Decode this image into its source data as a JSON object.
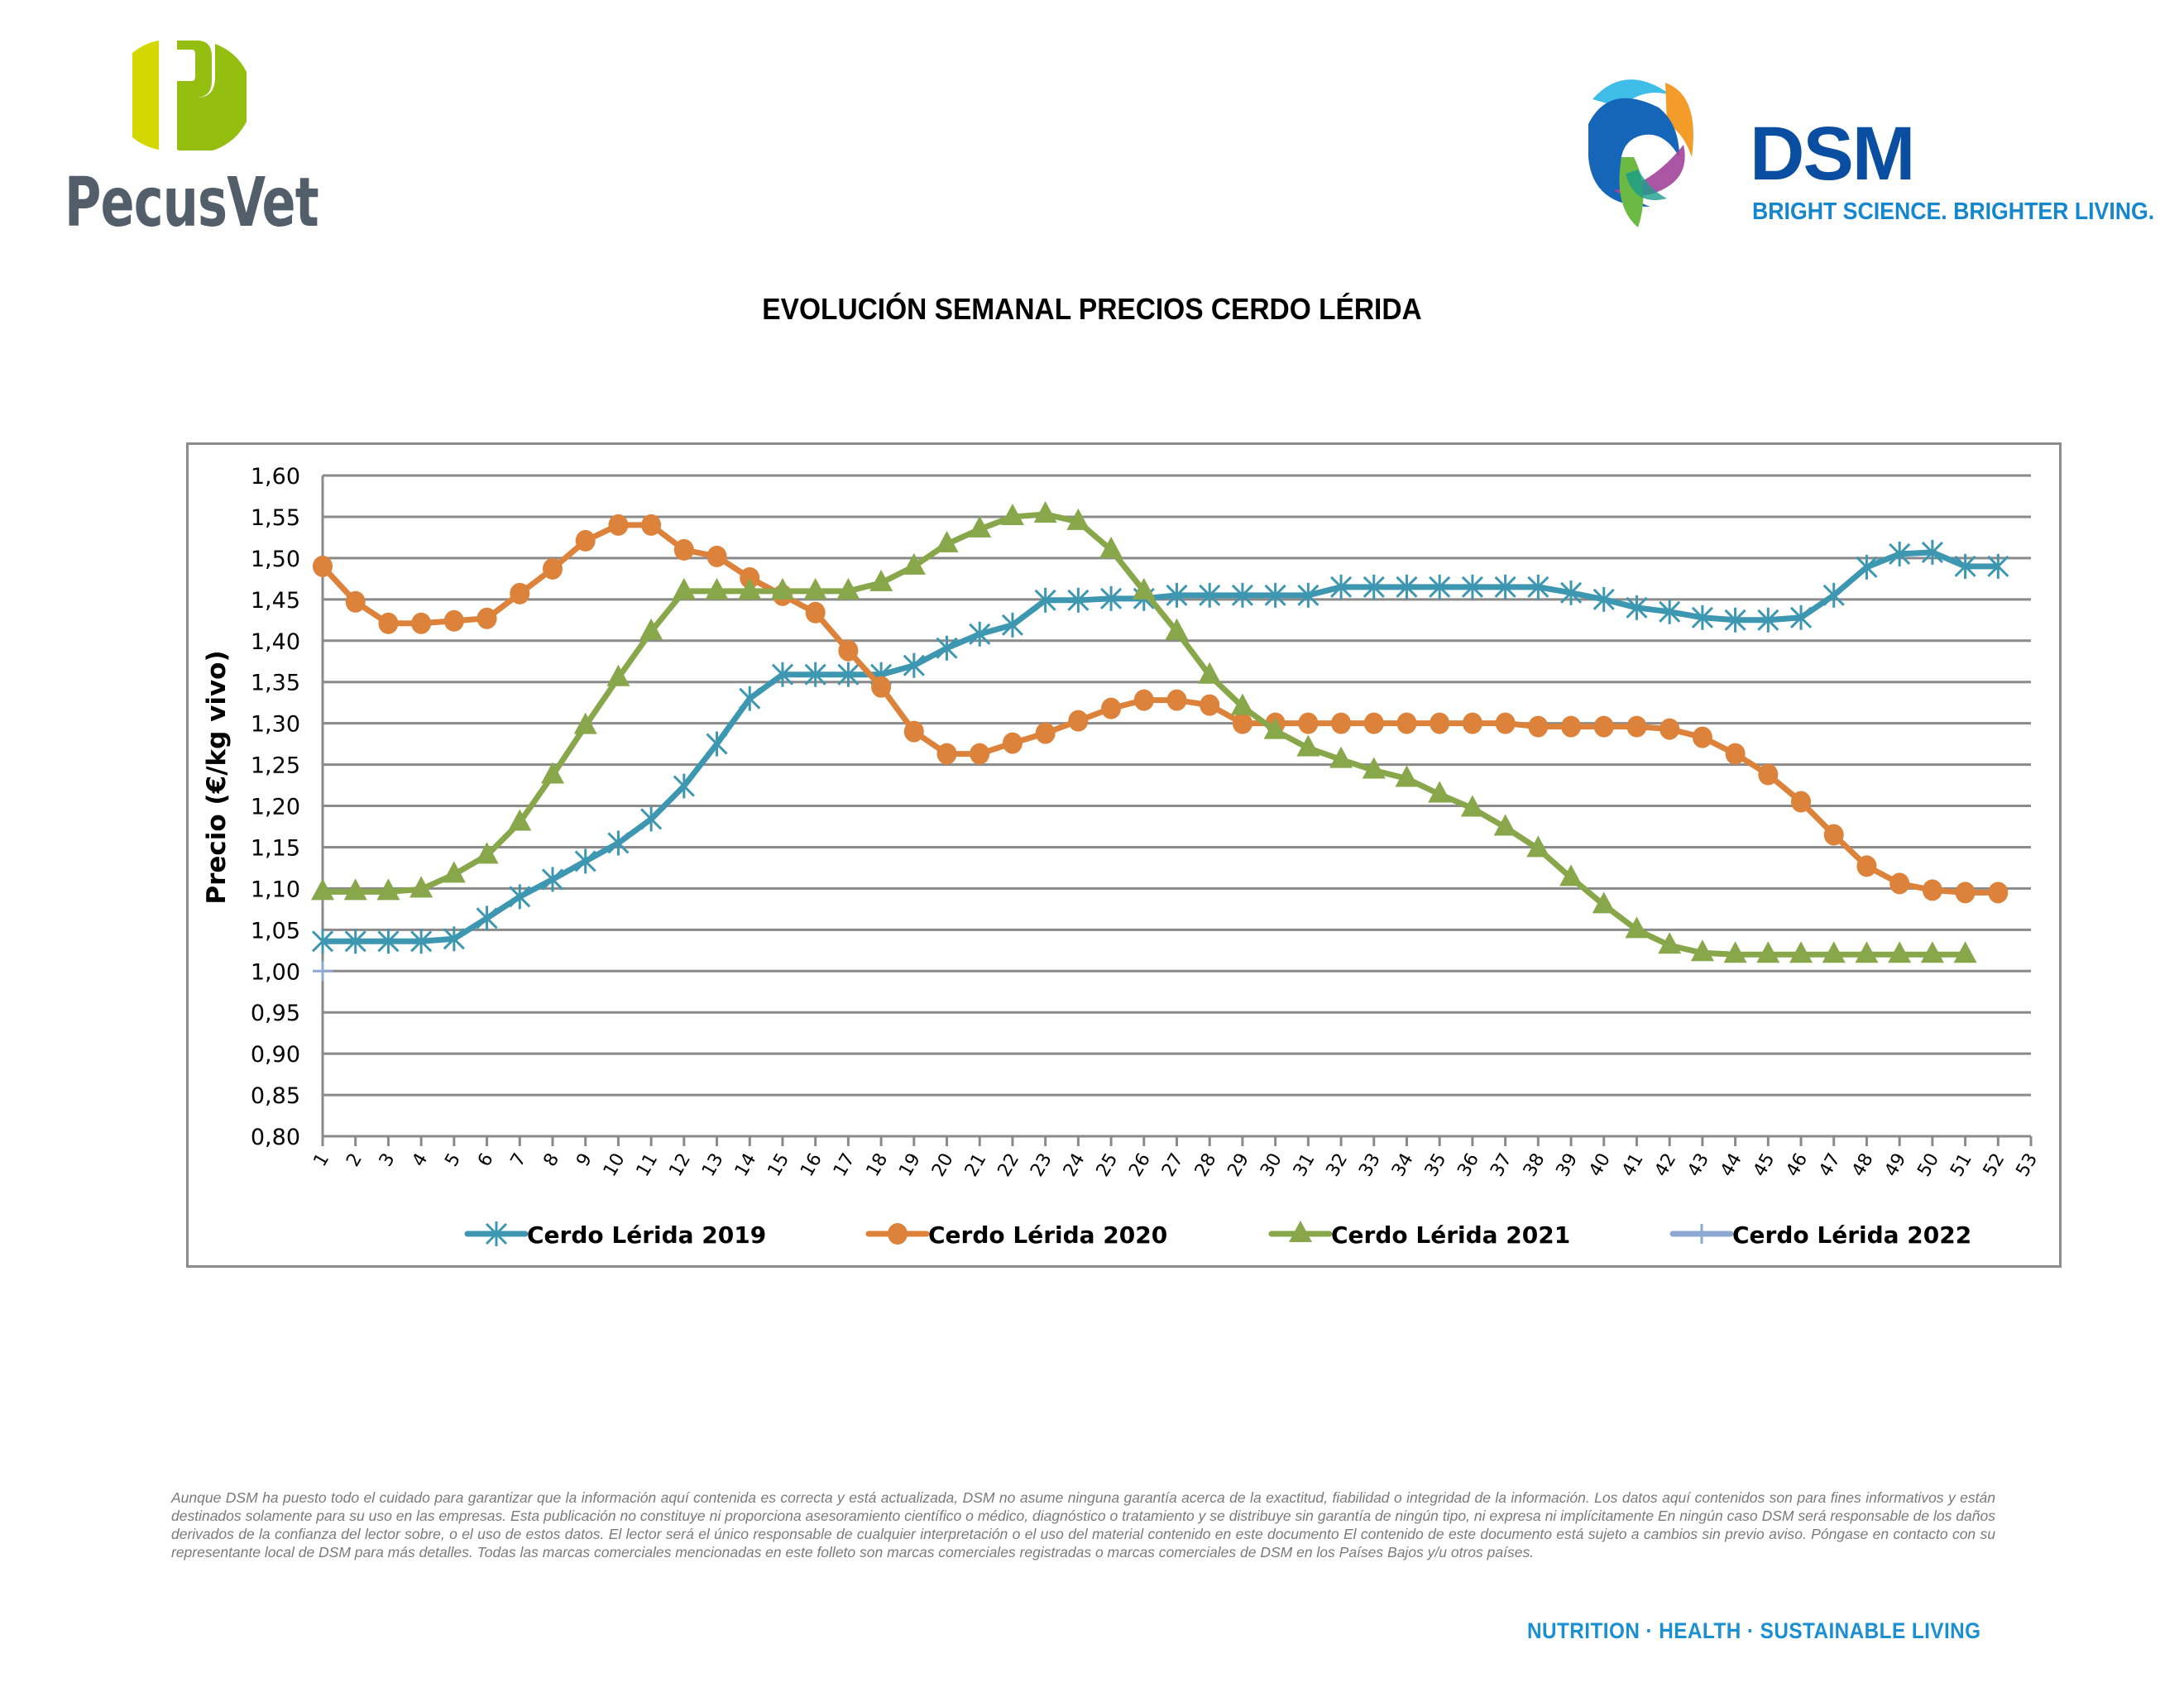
{
  "header": {
    "left_logo": {
      "name": "PecusVet",
      "icon": "pecusvet-p-icon",
      "colors": {
        "left_half": "#d4d800",
        "right_half": "#95bf10",
        "text": "#535e6b"
      }
    },
    "right_logo": {
      "name": "DSM",
      "tagline": "BRIGHT SCIENCE. BRIGHTER LIVING.",
      "icon": "dsm-swirl-icon",
      "colors": {
        "word": "#0a4ea2",
        "tagline": "#1587cf"
      }
    }
  },
  "page_title": "EVOLUCIÓN SEMANAL PRECIOS CERDO LÉRIDA",
  "chart_data": {
    "type": "line",
    "title": "EVOLUCIÓN SEMANAL PRECIOS CERDO LÉRIDA",
    "xlabel": "",
    "ylabel": "Precio (€/kg vivo)",
    "ylim": [
      0.8,
      1.6
    ],
    "y_ticks": [
      "0,80",
      "0,85",
      "0,90",
      "0,95",
      "1,00",
      "1,05",
      "1,10",
      "1,15",
      "1,20",
      "1,25",
      "1,30",
      "1,35",
      "1,40",
      "1,45",
      "1,50",
      "1,55",
      "1,60"
    ],
    "x_ticks": [
      "1",
      "2",
      "3",
      "4",
      "5",
      "6",
      "7",
      "8",
      "9",
      "10",
      "11",
      "12",
      "13",
      "14",
      "15",
      "16",
      "17",
      "18",
      "19",
      "20",
      "21",
      "22",
      "23",
      "24",
      "25",
      "26",
      "27",
      "28",
      "29",
      "30",
      "31",
      "32",
      "33",
      "34",
      "35",
      "36",
      "37",
      "38",
      "39",
      "40",
      "41",
      "42",
      "43",
      "44",
      "45",
      "46",
      "47",
      "48",
      "49",
      "50",
      "51",
      "52",
      "53"
    ],
    "grid": "horizontal",
    "legend_position": "bottom",
    "series": [
      {
        "name": "Cerdo Lérida 2019",
        "color": "#3e97b1",
        "marker": "star",
        "values": [
          1.036,
          1.036,
          1.036,
          1.036,
          1.039,
          1.064,
          1.09,
          1.111,
          1.133,
          1.155,
          1.184,
          1.224,
          1.275,
          1.33,
          1.359,
          1.359,
          1.359,
          1.359,
          1.37,
          1.391,
          1.408,
          1.419,
          1.449,
          1.449,
          1.451,
          1.451,
          1.455,
          1.455,
          1.455,
          1.455,
          1.455,
          1.465,
          1.465,
          1.465,
          1.465,
          1.465,
          1.465,
          1.465,
          1.458,
          1.45,
          1.44,
          1.435,
          1.428,
          1.425,
          1.425,
          1.428,
          1.455,
          1.489,
          1.505,
          1.507,
          1.49,
          1.49
        ]
      },
      {
        "name": "Cerdo Lérida 2020",
        "color": "#dc823a",
        "marker": "circle",
        "values": [
          1.49,
          1.447,
          1.421,
          1.421,
          1.424,
          1.427,
          1.457,
          1.487,
          1.521,
          1.54,
          1.54,
          1.51,
          1.502,
          1.476,
          1.455,
          1.434,
          1.388,
          1.344,
          1.29,
          1.263,
          1.263,
          1.276,
          1.288,
          1.303,
          1.318,
          1.328,
          1.328,
          1.322,
          1.3,
          1.3,
          1.3,
          1.3,
          1.3,
          1.3,
          1.3,
          1.3,
          1.3,
          1.296,
          1.296,
          1.296,
          1.296,
          1.293,
          1.283,
          1.263,
          1.238,
          1.205,
          1.165,
          1.127,
          1.106,
          1.098,
          1.095,
          1.095
        ]
      },
      {
        "name": "Cerdo Lérida 2021",
        "color": "#87a74a",
        "marker": "triangle",
        "values": [
          1.096,
          1.096,
          1.096,
          1.099,
          1.117,
          1.14,
          1.18,
          1.237,
          1.297,
          1.355,
          1.411,
          1.46,
          1.46,
          1.46,
          1.46,
          1.46,
          1.46,
          1.47,
          1.49,
          1.517,
          1.535,
          1.55,
          1.553,
          1.544,
          1.51,
          1.46,
          1.411,
          1.358,
          1.32,
          1.291,
          1.27,
          1.256,
          1.243,
          1.233,
          1.214,
          1.197,
          1.174,
          1.148,
          1.113,
          1.08,
          1.05,
          1.031,
          1.022,
          1.02,
          1.02,
          1.02,
          1.02,
          1.02,
          1.02,
          1.02,
          1.02
        ]
      },
      {
        "name": "Cerdo Lérida 2022",
        "color": "#8ea9d1",
        "marker": "plus",
        "values": [
          1.0
        ]
      }
    ]
  },
  "disclaimer": "Aunque DSM ha puesto todo el cuidado para garantizar que la información aquí contenida es correcta y está actualizada, DSM no asume ninguna garantía acerca de la exactitud, fiabilidad o integridad de la información. Los datos aquí contenidos son para fines informativos y están destinados solamente para su uso en las empresas. Esta publicación no constituye ni proporciona asesoramiento científico o médico, diagnóstico o tratamiento y se distribuye sin garantía de ningún tipo, ni expresa ni implícitamente En ningún caso DSM será responsable de los daños derivados de la confianza del lector sobre, o el uso de estos datos. El lector será el único responsable de cualquier interpretación o el uso del material contenido en este documento El contenido de este documento está sujeto a cambios sin previo aviso. Póngase en contacto con su representante local de DSM para más detalles. Todas las marcas comerciales mencionadas en este folleto son marcas comerciales registradas o marcas comerciales de DSM en los Países Bajos y/u otros países.",
  "footer_tagline": "NUTRITION  ·  HEALTH  ·  SUSTAINABLE LIVING"
}
